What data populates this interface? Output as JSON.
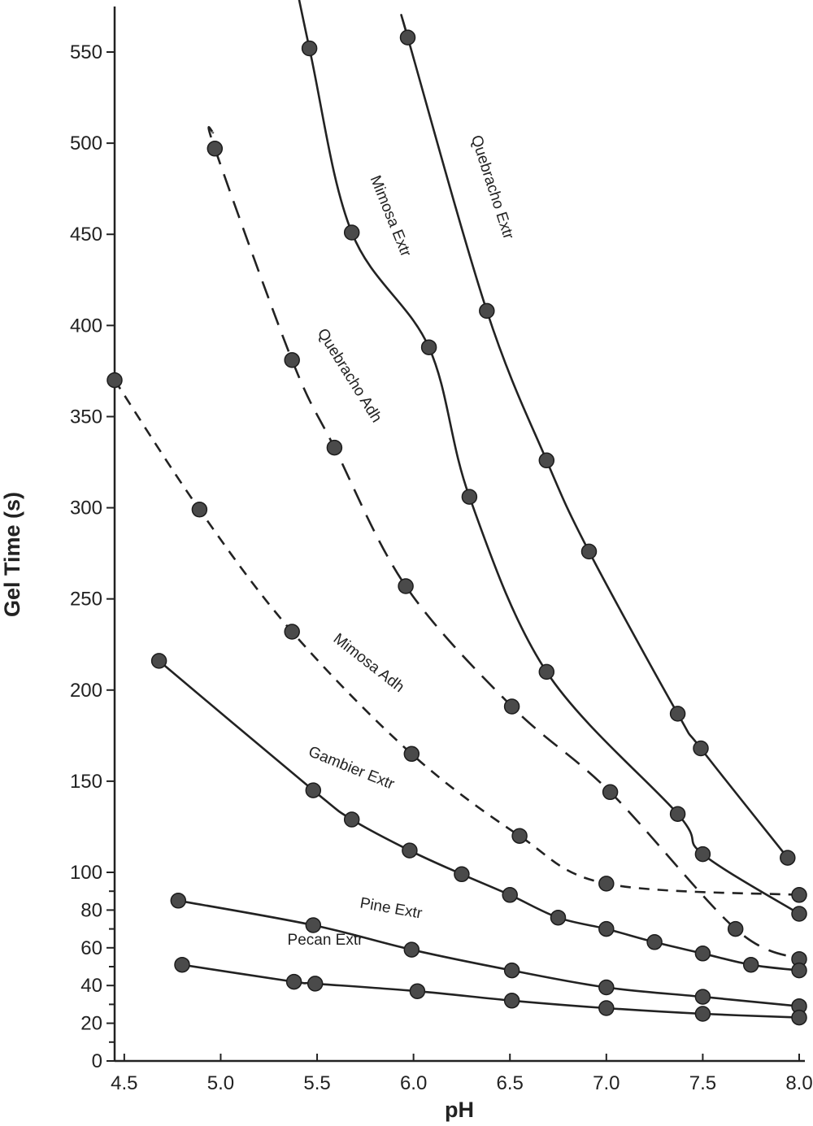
{
  "chart_data": {
    "type": "line",
    "xlabel": "pH",
    "ylabel": "Gel Time  (s)",
    "xlim": [
      4.45,
      8.0
    ],
    "ylim": [
      0,
      560
    ],
    "x_ticks": [
      "4.5",
      "5.0",
      "5.5",
      "6.0",
      "6.5",
      "7.0",
      "7.5",
      "8.0"
    ],
    "y_ticks": [
      "0",
      "20",
      "40",
      "60",
      "80",
      "100",
      "150",
      "200",
      "250",
      "300",
      "350",
      "400",
      "450",
      "500",
      "550"
    ],
    "grid": false,
    "legend": "none",
    "series": [
      {
        "name": "Quebracho Extr",
        "line_style": "solid",
        "points": [
          [
            5.97,
            558
          ],
          [
            6.38,
            408
          ],
          [
            6.69,
            326
          ],
          [
            6.91,
            276
          ],
          [
            7.37,
            187
          ],
          [
            7.49,
            168
          ],
          [
            7.94,
            108
          ]
        ]
      },
      {
        "name": "Mimosa Extr",
        "line_style": "solid",
        "points": [
          [
            5.46,
            552
          ],
          [
            5.68,
            451
          ],
          [
            6.08,
            388
          ],
          [
            6.29,
            306
          ],
          [
            6.69,
            210
          ],
          [
            7.37,
            132
          ],
          [
            7.5,
            110
          ],
          [
            8.0,
            78
          ]
        ]
      },
      {
        "name": "Quebracho Adh",
        "line_style": "long-dash",
        "points": [
          [
            4.97,
            497
          ],
          [
            5.37,
            381
          ],
          [
            5.59,
            333
          ],
          [
            5.96,
            257
          ],
          [
            6.51,
            191
          ],
          [
            7.02,
            144
          ],
          [
            7.67,
            70
          ],
          [
            8.0,
            54
          ]
        ]
      },
      {
        "name": "Mimosa Adh",
        "line_style": "short-dash",
        "points": [
          [
            4.45,
            370
          ],
          [
            4.89,
            299
          ],
          [
            5.37,
            232
          ],
          [
            5.99,
            165
          ],
          [
            6.55,
            120
          ],
          [
            7.0,
            94
          ],
          [
            8.0,
            88
          ]
        ]
      },
      {
        "name": "Gambier Extr",
        "line_style": "solid",
        "points": [
          [
            4.68,
            216
          ],
          [
            5.48,
            145
          ],
          [
            5.68,
            129
          ],
          [
            5.98,
            112
          ],
          [
            6.25,
            99
          ],
          [
            6.5,
            88
          ],
          [
            6.75,
            76
          ],
          [
            7.0,
            70
          ],
          [
            7.25,
            63
          ],
          [
            7.5,
            57
          ],
          [
            7.75,
            51
          ],
          [
            8.0,
            48
          ]
        ]
      },
      {
        "name": "Pine Extr",
        "line_style": "solid",
        "points": [
          [
            4.78,
            85
          ],
          [
            5.48,
            72
          ],
          [
            5.99,
            59
          ],
          [
            6.51,
            48
          ],
          [
            7.0,
            39
          ],
          [
            7.5,
            34
          ],
          [
            8.0,
            29
          ]
        ]
      },
      {
        "name": "Pecan Extr",
        "line_style": "solid",
        "points": [
          [
            4.8,
            51
          ],
          [
            5.38,
            42
          ],
          [
            5.49,
            41
          ],
          [
            6.02,
            37
          ],
          [
            6.51,
            32
          ],
          [
            7.0,
            28
          ],
          [
            7.5,
            25
          ],
          [
            8.0,
            23
          ]
        ]
      }
    ],
    "annotations": [
      "Quebracho Extr",
      "Mimosa Extr",
      "Quebracho Adh",
      "Mimosa Adh",
      "Gambier Extr",
      "Pine Extr",
      "Pecan Extr"
    ]
  }
}
